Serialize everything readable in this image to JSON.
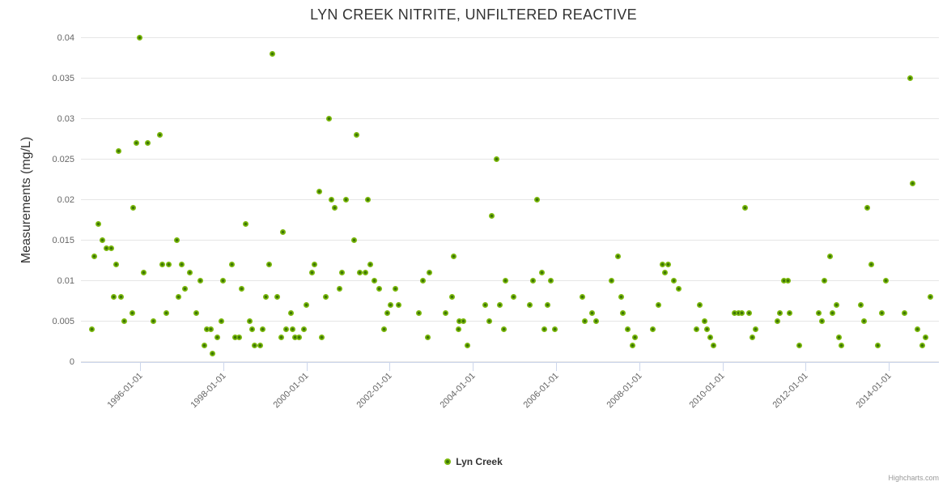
{
  "header": {
    "title": "LYN CREEK NITRITE, UNFILTERED REACTIVE"
  },
  "legend": {
    "label": "Lyn Creek"
  },
  "credits": {
    "label": "Highcharts.com"
  },
  "colors": {
    "marker_outer": "#7bb80d",
    "marker_inner": "#3c7505",
    "grid": "#e6e6e6",
    "axis": "#ccd6eb",
    "tick_label": "#666666",
    "title": "#333333"
  },
  "chart_data": {
    "type": "scatter",
    "title": "LYN CREEK NITRITE, UNFILTERED REACTIVE",
    "xlabel": "",
    "ylabel": "Measurements (mg/L)",
    "legend_position": "bottom-center",
    "grid": "horizontal-only",
    "ylim": [
      0,
      0.04
    ],
    "xlim_years": [
      1994.58,
      2015.2
    ],
    "y_ticks": [
      {
        "v": 0,
        "label": "0"
      },
      {
        "v": 0.005,
        "label": "0.005"
      },
      {
        "v": 0.01,
        "label": "0.01"
      },
      {
        "v": 0.015,
        "label": "0.015"
      },
      {
        "v": 0.02,
        "label": "0.02"
      },
      {
        "v": 0.025,
        "label": "0.025"
      },
      {
        "v": 0.03,
        "label": "0.03"
      },
      {
        "v": 0.035,
        "label": "0.035"
      },
      {
        "v": 0.04,
        "label": "0.04"
      }
    ],
    "x_ticks": [
      {
        "year": 1996,
        "label": "1996-01-01"
      },
      {
        "year": 1998,
        "label": "1998-01-01"
      },
      {
        "year": 2000,
        "label": "2000-01-01"
      },
      {
        "year": 2002,
        "label": "2002-01-01"
      },
      {
        "year": 2004,
        "label": "2004-01-01"
      },
      {
        "year": 2006,
        "label": "2006-01-01"
      },
      {
        "year": 2008,
        "label": "2008-01-01"
      },
      {
        "year": 2010,
        "label": "2010-01-01"
      },
      {
        "year": 2012,
        "label": "2012-01-01"
      },
      {
        "year": 2014,
        "label": "2014-01-01"
      }
    ],
    "series": [
      {
        "name": "Lyn Creek",
        "points": [
          [
            1994.85,
            0.004
          ],
          [
            1994.91,
            0.013
          ],
          [
            1994.99,
            0.017
          ],
          [
            1995.09,
            0.015
          ],
          [
            1995.2,
            0.014
          ],
          [
            1995.3,
            0.014
          ],
          [
            1995.36,
            0.008
          ],
          [
            1995.42,
            0.012
          ],
          [
            1995.49,
            0.026
          ],
          [
            1995.55,
            0.008
          ],
          [
            1995.63,
            0.005
          ],
          [
            1995.81,
            0.006
          ],
          [
            1995.84,
            0.019
          ],
          [
            1995.92,
            0.027
          ],
          [
            1996.0,
            0.04
          ],
          [
            1996.08,
            0.011
          ],
          [
            1996.18,
            0.027
          ],
          [
            1996.33,
            0.005
          ],
          [
            1996.47,
            0.028
          ],
          [
            1996.54,
            0.012
          ],
          [
            1996.64,
            0.006
          ],
          [
            1996.7,
            0.012
          ],
          [
            1996.88,
            0.015
          ],
          [
            1996.93,
            0.008
          ],
          [
            1997.01,
            0.012
          ],
          [
            1997.07,
            0.009
          ],
          [
            1997.19,
            0.011
          ],
          [
            1997.36,
            0.006
          ],
          [
            1997.44,
            0.01
          ],
          [
            1997.54,
            0.002
          ],
          [
            1997.6,
            0.004
          ],
          [
            1997.71,
            0.004
          ],
          [
            1997.75,
            0.001
          ],
          [
            1997.85,
            0.003
          ],
          [
            1997.95,
            0.005
          ],
          [
            1998.0,
            0.01
          ],
          [
            1998.2,
            0.012
          ],
          [
            1998.28,
            0.003
          ],
          [
            1998.39,
            0.003
          ],
          [
            1998.45,
            0.009
          ],
          [
            1998.53,
            0.017
          ],
          [
            1998.63,
            0.005
          ],
          [
            1998.7,
            0.004
          ],
          [
            1998.76,
            0.002
          ],
          [
            1998.88,
            0.002
          ],
          [
            1998.94,
            0.004
          ],
          [
            1999.02,
            0.008
          ],
          [
            1999.11,
            0.012
          ],
          [
            1999.19,
            0.038
          ],
          [
            1999.29,
            0.008
          ],
          [
            1999.4,
            0.003
          ],
          [
            1999.44,
            0.016
          ],
          [
            1999.52,
            0.004
          ],
          [
            1999.62,
            0.006
          ],
          [
            1999.66,
            0.004
          ],
          [
            1999.72,
            0.003
          ],
          [
            1999.83,
            0.003
          ],
          [
            1999.93,
            0.004
          ],
          [
            1999.99,
            0.007
          ],
          [
            2000.14,
            0.011
          ],
          [
            2000.2,
            0.012
          ],
          [
            2000.3,
            0.021
          ],
          [
            2000.36,
            0.003
          ],
          [
            2000.47,
            0.008
          ],
          [
            2000.55,
            0.03
          ],
          [
            2000.61,
            0.02
          ],
          [
            2000.67,
            0.019
          ],
          [
            2000.79,
            0.009
          ],
          [
            2000.86,
            0.011
          ],
          [
            2000.96,
            0.02
          ],
          [
            2001.14,
            0.015
          ],
          [
            2001.21,
            0.028
          ],
          [
            2001.29,
            0.011
          ],
          [
            2001.41,
            0.011
          ],
          [
            2001.47,
            0.02
          ],
          [
            2001.54,
            0.012
          ],
          [
            2001.64,
            0.01
          ],
          [
            2001.74,
            0.009
          ],
          [
            2001.86,
            0.004
          ],
          [
            2001.95,
            0.006
          ],
          [
            2002.03,
            0.007
          ],
          [
            2002.13,
            0.009
          ],
          [
            2002.21,
            0.007
          ],
          [
            2002.71,
            0.006
          ],
          [
            2002.79,
            0.01
          ],
          [
            2002.91,
            0.003
          ],
          [
            2002.96,
            0.011
          ],
          [
            2003.35,
            0.006
          ],
          [
            2003.49,
            0.008
          ],
          [
            2003.53,
            0.013
          ],
          [
            2003.65,
            0.004
          ],
          [
            2003.68,
            0.005
          ],
          [
            2003.78,
            0.005
          ],
          [
            2003.86,
            0.002
          ],
          [
            2004.29,
            0.007
          ],
          [
            2004.4,
            0.005
          ],
          [
            2004.46,
            0.018
          ],
          [
            2004.56,
            0.025
          ],
          [
            2004.64,
            0.007
          ],
          [
            2004.75,
            0.004
          ],
          [
            2004.79,
            0.01
          ],
          [
            2004.97,
            0.008
          ],
          [
            2005.36,
            0.007
          ],
          [
            2005.45,
            0.01
          ],
          [
            2005.55,
            0.02
          ],
          [
            2005.65,
            0.011
          ],
          [
            2005.71,
            0.004
          ],
          [
            2005.8,
            0.007
          ],
          [
            2005.88,
            0.01
          ],
          [
            2005.96,
            0.004
          ],
          [
            2006.64,
            0.008
          ],
          [
            2006.68,
            0.005
          ],
          [
            2006.87,
            0.006
          ],
          [
            2006.97,
            0.005
          ],
          [
            2007.34,
            0.01
          ],
          [
            2007.48,
            0.013
          ],
          [
            2007.56,
            0.008
          ],
          [
            2007.61,
            0.006
          ],
          [
            2007.73,
            0.004
          ],
          [
            2007.83,
            0.002
          ],
          [
            2007.89,
            0.003
          ],
          [
            2008.33,
            0.004
          ],
          [
            2008.45,
            0.007
          ],
          [
            2008.55,
            0.012
          ],
          [
            2008.61,
            0.011
          ],
          [
            2008.7,
            0.012
          ],
          [
            2008.82,
            0.01
          ],
          [
            2008.94,
            0.009
          ],
          [
            2009.38,
            0.004
          ],
          [
            2009.46,
            0.007
          ],
          [
            2009.56,
            0.005
          ],
          [
            2009.62,
            0.004
          ],
          [
            2009.7,
            0.003
          ],
          [
            2009.79,
            0.002
          ],
          [
            2010.28,
            0.006
          ],
          [
            2010.38,
            0.006
          ],
          [
            2010.47,
            0.006
          ],
          [
            2010.55,
            0.019
          ],
          [
            2010.63,
            0.006
          ],
          [
            2010.71,
            0.003
          ],
          [
            2010.8,
            0.004
          ],
          [
            2011.31,
            0.005
          ],
          [
            2011.37,
            0.006
          ],
          [
            2011.47,
            0.01
          ],
          [
            2011.58,
            0.01
          ],
          [
            2011.62,
            0.006
          ],
          [
            2011.84,
            0.002
          ],
          [
            2012.32,
            0.006
          ],
          [
            2012.38,
            0.005
          ],
          [
            2012.44,
            0.01
          ],
          [
            2012.58,
            0.013
          ],
          [
            2012.64,
            0.006
          ],
          [
            2012.73,
            0.007
          ],
          [
            2012.79,
            0.003
          ],
          [
            2012.85,
            0.002
          ],
          [
            2013.32,
            0.007
          ],
          [
            2013.41,
            0.005
          ],
          [
            2013.47,
            0.019
          ],
          [
            2013.57,
            0.012
          ],
          [
            2013.74,
            0.002
          ],
          [
            2013.82,
            0.006
          ],
          [
            2013.92,
            0.01
          ],
          [
            2014.38,
            0.006
          ],
          [
            2014.5,
            0.035
          ],
          [
            2014.56,
            0.022
          ],
          [
            2014.68,
            0.004
          ],
          [
            2014.8,
            0.002
          ],
          [
            2014.87,
            0.003
          ],
          [
            2014.99,
            0.008
          ]
        ]
      }
    ]
  }
}
